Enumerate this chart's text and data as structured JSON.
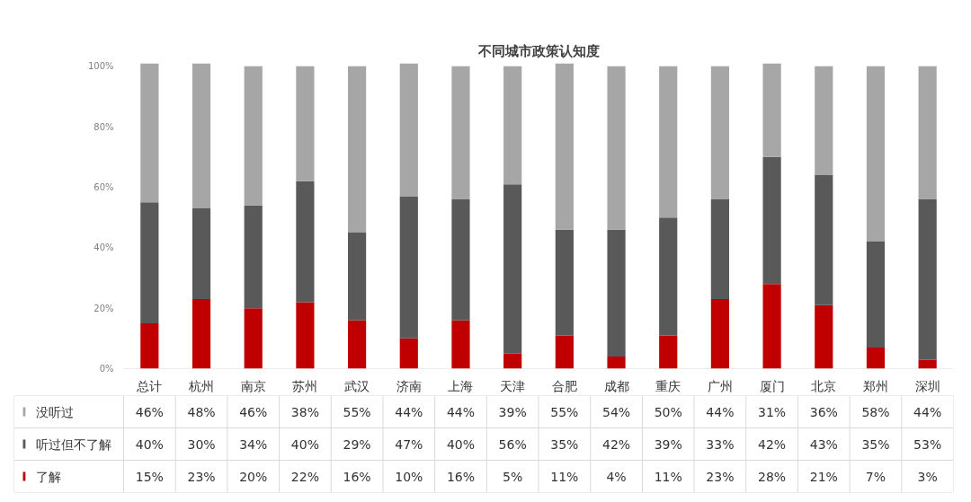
{
  "chart_data": {
    "type": "bar",
    "title": "不同城市政策认知度",
    "stacked": true,
    "legend": "bottom",
    "grid": false,
    "categories": [
      "总计",
      "杭州",
      "南京",
      "苏州",
      "武汉",
      "济南",
      "上海",
      "天津",
      "合肥",
      "成都",
      "重庆",
      "广州",
      "厦门",
      "北京",
      "郑州",
      "深圳"
    ],
    "ylim": [
      0,
      101
    ],
    "yticks": [
      {
        "value": 0,
        "label": "0%"
      },
      {
        "value": 20,
        "label": "20%"
      },
      {
        "value": 40,
        "label": "40%"
      },
      {
        "value": 60,
        "label": "60%"
      },
      {
        "value": 80,
        "label": "80%"
      },
      {
        "value": 100,
        "label": "100%"
      }
    ],
    "series": [
      {
        "name": "了解",
        "color": "#c00000",
        "values": [
          15,
          23,
          20,
          22,
          16,
          10,
          16,
          5,
          11,
          4,
          11,
          23,
          28,
          21,
          7,
          3
        ],
        "value_labels": [
          "15%",
          "23%",
          "20%",
          "22%",
          "16%",
          "10%",
          "16%",
          "5%",
          "11%",
          "4%",
          "11%",
          "23%",
          "28%",
          "21%",
          "7%",
          "3%"
        ]
      },
      {
        "name": "听过但不了解",
        "color": "#595959",
        "values": [
          40,
          30,
          34,
          40,
          29,
          47,
          40,
          56,
          35,
          42,
          39,
          33,
          42,
          43,
          35,
          53
        ],
        "value_labels": [
          "40%",
          "30%",
          "34%",
          "40%",
          "29%",
          "47%",
          "40%",
          "56%",
          "35%",
          "42%",
          "39%",
          "33%",
          "42%",
          "43%",
          "35%",
          "53%"
        ]
      },
      {
        "name": "没听过",
        "color": "#a6a6a6",
        "values": [
          46,
          48,
          46,
          38,
          55,
          44,
          44,
          39,
          55,
          54,
          50,
          44,
          31,
          36,
          58,
          44
        ],
        "value_labels": [
          "46%",
          "48%",
          "46%",
          "38%",
          "55%",
          "44%",
          "44%",
          "39%",
          "55%",
          "54%",
          "50%",
          "44%",
          "31%",
          "36%",
          "58%",
          "44%"
        ]
      }
    ]
  }
}
